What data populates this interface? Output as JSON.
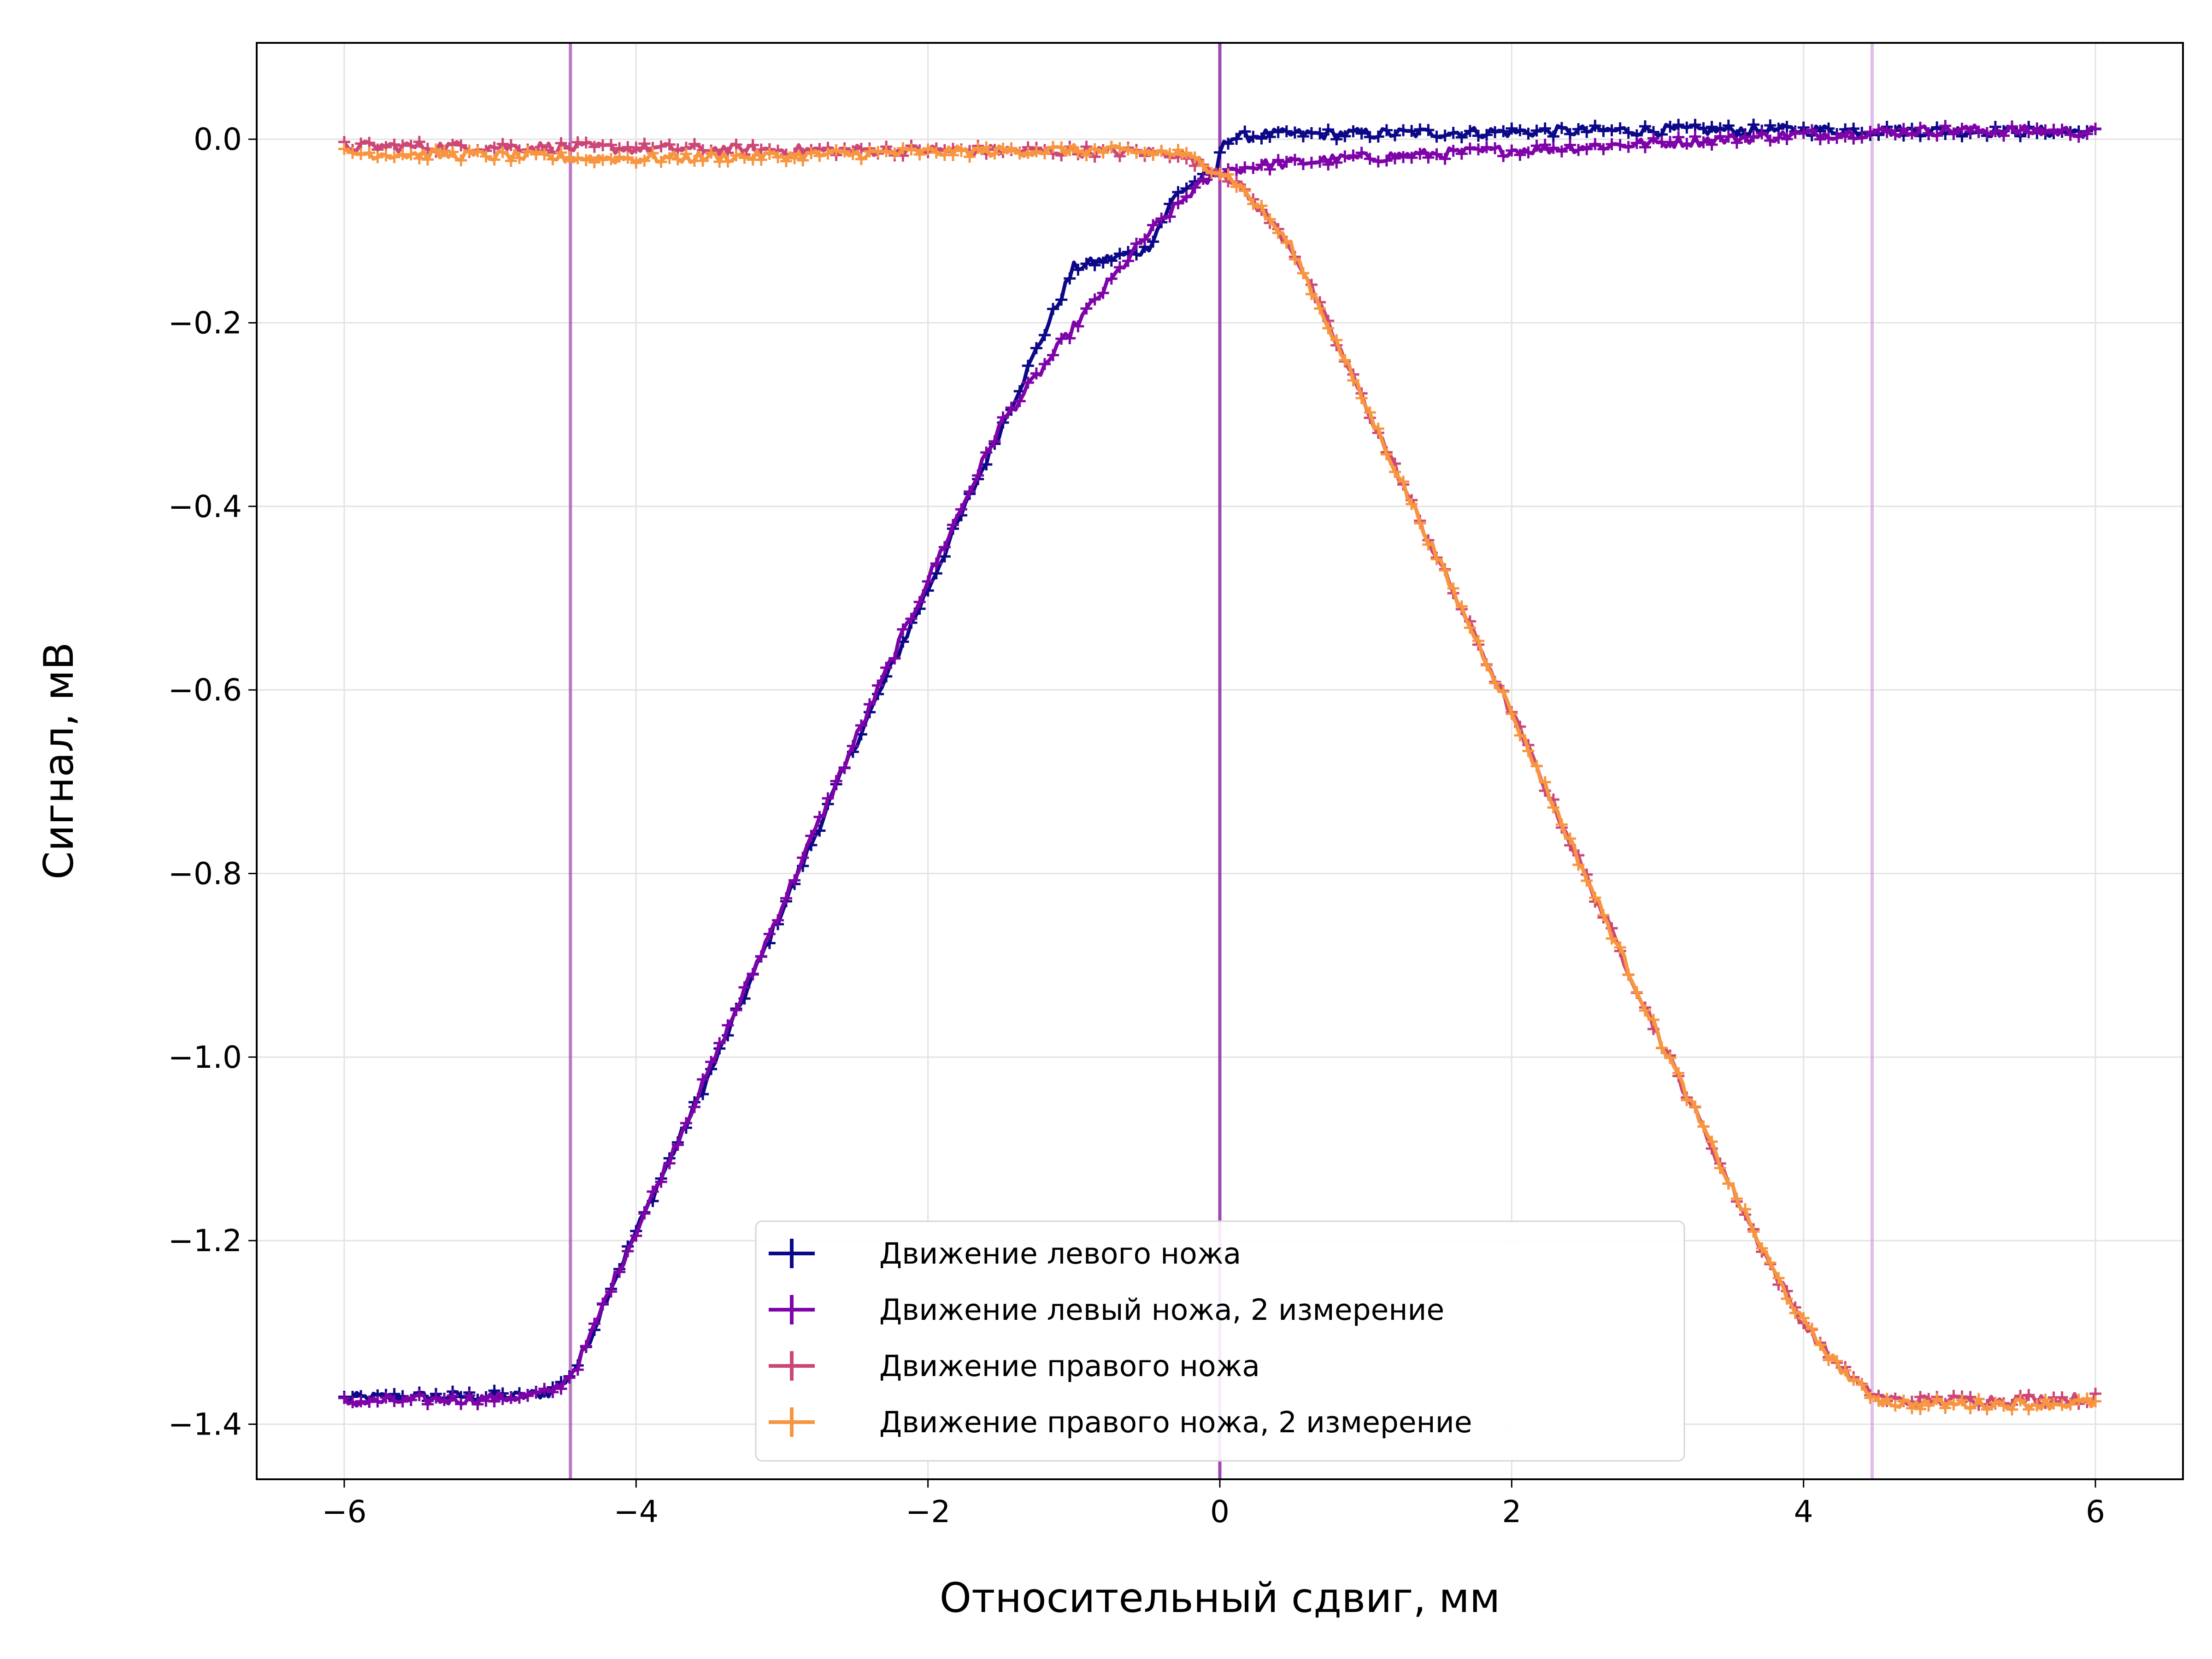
{
  "chart_data": {
    "type": "line",
    "title": "",
    "xlabel": "Относительный сдвиг, мм",
    "ylabel": "Сигнал, мВ",
    "xlim": [
      -6.6,
      6.6
    ],
    "ylim": [
      -1.46,
      0.105
    ],
    "x_ticks": [
      {
        "value": -6,
        "label": "−6"
      },
      {
        "value": -4,
        "label": "−4"
      },
      {
        "value": -2,
        "label": "−2"
      },
      {
        "value": 0,
        "label": "0"
      },
      {
        "value": 2,
        "label": "2"
      },
      {
        "value": 4,
        "label": "4"
      },
      {
        "value": 6,
        "label": "6"
      }
    ],
    "y_ticks": [
      {
        "value": 0.0,
        "label": "0.0"
      },
      {
        "value": -0.2,
        "label": "−0.2"
      },
      {
        "value": -0.4,
        "label": "−0.4"
      },
      {
        "value": -0.6,
        "label": "−0.6"
      },
      {
        "value": -0.8,
        "label": "−0.8"
      },
      {
        "value": -1.0,
        "label": "−1.0"
      },
      {
        "value": -1.2,
        "label": "−1.2"
      },
      {
        "value": -1.4,
        "label": "−1.4"
      }
    ],
    "grid": true,
    "legend_position": "lower-center",
    "vertical_lines": [
      {
        "x": -4.45,
        "color": "#a24fae",
        "opacity": 0.75
      },
      {
        "x": 0.0,
        "color": "#8e2aa8",
        "opacity": 0.85
      },
      {
        "x": 4.47,
        "color": "#cc8fd9",
        "opacity": 0.6
      }
    ],
    "series": [
      {
        "name": "Движение левого ножа",
        "color": "#0d0887",
        "points": [
          [
            -6,
            -1.372
          ],
          [
            -5.5,
            -1.37
          ],
          [
            -5,
            -1.369
          ],
          [
            -4.8,
            -1.37
          ],
          [
            -4.6,
            -1.365
          ],
          [
            -4.5,
            -1.355
          ],
          [
            -4.4,
            -1.335
          ],
          [
            -4.3,
            -1.3
          ],
          [
            -4.2,
            -1.26
          ],
          [
            -4,
            -1.19
          ],
          [
            -3.5,
            -1.02
          ],
          [
            -3,
            -0.84
          ],
          [
            -2.5,
            -0.66
          ],
          [
            -2,
            -0.49
          ],
          [
            -1.5,
            -0.315
          ],
          [
            -1,
            -0.14
          ],
          [
            -0.5,
            -0.12
          ],
          [
            -0.3,
            -0.06
          ],
          [
            -0.15,
            -0.045
          ],
          [
            -0.02,
            -0.038
          ],
          [
            0.02,
            0.0
          ],
          [
            0.3,
            0.005
          ],
          [
            1,
            0.006
          ],
          [
            2,
            0.008
          ],
          [
            3,
            0.01
          ],
          [
            4,
            0.01
          ],
          [
            5,
            0.009
          ],
          [
            6,
            0.008
          ]
        ]
      },
      {
        "name": "Движение левый ножа, 2 измерение",
        "color": "#7e03a8",
        "points": [
          [
            -6,
            -1.376
          ],
          [
            -5.5,
            -1.374
          ],
          [
            -5,
            -1.372
          ],
          [
            -4.8,
            -1.37
          ],
          [
            -4.6,
            -1.366
          ],
          [
            -4.5,
            -1.355
          ],
          [
            -4.4,
            -1.335
          ],
          [
            -4.3,
            -1.3
          ],
          [
            -4.2,
            -1.26
          ],
          [
            -4,
            -1.19
          ],
          [
            -3.5,
            -1.015
          ],
          [
            -3,
            -0.835
          ],
          [
            -2.5,
            -0.655
          ],
          [
            -2,
            -0.48
          ],
          [
            -1.5,
            -0.31
          ],
          [
            -1,
            -0.205
          ],
          [
            -0.5,
            -0.105
          ],
          [
            -0.2,
            -0.058
          ],
          [
            0,
            -0.035
          ],
          [
            0.3,
            -0.028
          ],
          [
            1,
            -0.02
          ],
          [
            2,
            -0.012
          ],
          [
            3,
            -0.004
          ],
          [
            4,
            0.005
          ],
          [
            5,
            0.01
          ],
          [
            6,
            0.008
          ]
        ]
      },
      {
        "name": "Движение правого ножа",
        "color": "#cc4778",
        "points": [
          [
            -6,
            -0.008
          ],
          [
            -5,
            -0.008
          ],
          [
            -4,
            -0.01
          ],
          [
            -3,
            -0.012
          ],
          [
            -2,
            -0.012
          ],
          [
            -1,
            -0.013
          ],
          [
            -0.3,
            -0.015
          ],
          [
            -0.1,
            -0.028
          ],
          [
            0,
            -0.035
          ],
          [
            0.1,
            -0.045
          ],
          [
            0.3,
            -0.08
          ],
          [
            0.5,
            -0.12
          ],
          [
            1,
            -0.29
          ],
          [
            1.5,
            -0.46
          ],
          [
            2,
            -0.625
          ],
          [
            2.5,
            -0.8
          ],
          [
            3,
            -0.975
          ],
          [
            3.5,
            -1.14
          ],
          [
            3.8,
            -1.235
          ],
          [
            4,
            -1.29
          ],
          [
            4.2,
            -1.33
          ],
          [
            4.4,
            -1.36
          ],
          [
            4.55,
            -1.372
          ],
          [
            4.7,
            -1.375
          ],
          [
            5,
            -1.374
          ],
          [
            5.5,
            -1.373
          ],
          [
            6,
            -1.372
          ]
        ]
      },
      {
        "name": "Движение правого ножа, 2 измерение",
        "color": "#f89540",
        "points": [
          [
            -6,
            -0.015
          ],
          [
            -5,
            -0.018
          ],
          [
            -4.5,
            -0.02
          ],
          [
            -4,
            -0.021
          ],
          [
            -3,
            -0.018
          ],
          [
            -2,
            -0.014
          ],
          [
            -1,
            -0.012
          ],
          [
            -0.3,
            -0.015
          ],
          [
            -0.1,
            -0.028
          ],
          [
            0,
            -0.035
          ],
          [
            0.1,
            -0.045
          ],
          [
            0.3,
            -0.08
          ],
          [
            0.5,
            -0.12
          ],
          [
            1,
            -0.29
          ],
          [
            1.5,
            -0.46
          ],
          [
            2,
            -0.625
          ],
          [
            2.5,
            -0.8
          ],
          [
            3,
            -0.975
          ],
          [
            3.5,
            -1.14
          ],
          [
            3.8,
            -1.235
          ],
          [
            4,
            -1.29
          ],
          [
            4.2,
            -1.33
          ],
          [
            4.4,
            -1.362
          ],
          [
            4.55,
            -1.375
          ],
          [
            4.7,
            -1.378
          ],
          [
            5,
            -1.378
          ],
          [
            5.5,
            -1.378
          ],
          [
            6,
            -1.377
          ]
        ]
      }
    ]
  }
}
